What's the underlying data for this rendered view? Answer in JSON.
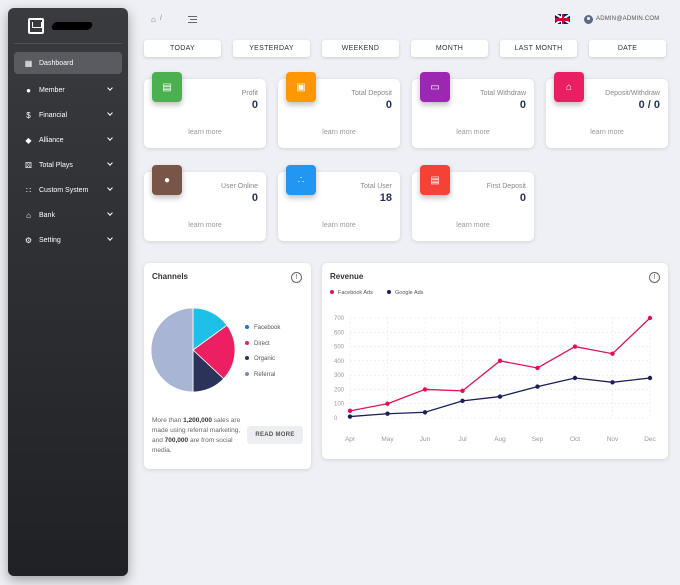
{
  "sidebar": {
    "items": [
      {
        "label": "Dashboard",
        "icon": "dashboard-icon"
      },
      {
        "label": "Member",
        "icon": "person-icon"
      },
      {
        "label": "Financial",
        "icon": "dollar-icon"
      },
      {
        "label": "Alliance",
        "icon": "diamond-icon"
      },
      {
        "label": "Total Plays",
        "icon": "dice-icon"
      },
      {
        "label": "Custom System",
        "icon": "apps-icon"
      },
      {
        "label": "Bank",
        "icon": "bank-icon"
      },
      {
        "label": "Setting",
        "icon": "gear-icon"
      }
    ]
  },
  "topbar": {
    "breadcrumb_sep": "/",
    "user_email": "ADMIN@ADMIN.COM"
  },
  "filters": [
    "TODAY",
    "YESTERDAY",
    "WEEKEND",
    "MONTH",
    "LAST MONTH",
    "DATE"
  ],
  "cards": [
    {
      "label": "Profit",
      "value": "0",
      "link": "learn more",
      "color": "#4caf50",
      "icon": "chart-icon"
    },
    {
      "label": "Total Deposit",
      "value": "0",
      "link": "learn more",
      "color": "#ff9800",
      "icon": "wallet-icon"
    },
    {
      "label": "Total Withdraw",
      "value": "0",
      "link": "learn more",
      "color": "#9c27b0",
      "icon": "card-icon"
    },
    {
      "label": "Deposit/Withdraw",
      "value": "0 / 0",
      "link": "learn more",
      "color": "#e91e63",
      "icon": "bank-icon"
    },
    {
      "label": "User Online",
      "value": "0",
      "link": "learn more",
      "color": "#795548",
      "icon": "account-icon"
    },
    {
      "label": "Total User",
      "value": "18",
      "link": "learn more",
      "color": "#2196f3",
      "icon": "group-icon"
    },
    {
      "label": "First Deposit",
      "value": "0",
      "link": "learn more",
      "color": "#f44336",
      "icon": "deposit-icon"
    }
  ],
  "channels": {
    "title": "Channels",
    "text_before": "More than ",
    "text_bold1": "1,200,000",
    "text_mid": " sales are made using referral marketing, and ",
    "text_bold2": "700,000",
    "text_after": " are from social media.",
    "button": "READ MORE",
    "chart_data": {
      "type": "pie",
      "labels": [
        "Facebook",
        "Direct",
        "Organic",
        "Referral"
      ],
      "values": [
        15,
        22,
        13,
        50
      ],
      "colors": [
        "#1ec0e8",
        "#ec1f62",
        "#2b3359",
        "#a8b5d4"
      ]
    }
  },
  "revenue": {
    "title": "Revenue",
    "chart_data": {
      "type": "line",
      "categories": [
        "Apr",
        "May",
        "Jun",
        "Jul",
        "Aug",
        "Sep",
        "Oct",
        "Nov",
        "Dec"
      ],
      "series": [
        {
          "name": "Facebook Ads",
          "color": "#e0105b",
          "values": [
            50,
            100,
            200,
            190,
            400,
            350,
            500,
            450,
            700
          ]
        },
        {
          "name": "Google Ads",
          "color": "#1a2057",
          "values": [
            10,
            30,
            40,
            120,
            150,
            220,
            280,
            250,
            280
          ]
        }
      ],
      "yticks": [
        0,
        100,
        200,
        300,
        400,
        500,
        600,
        700
      ],
      "ylim": [
        0,
        700
      ],
      "grid": true,
      "legend": "top-left"
    }
  }
}
